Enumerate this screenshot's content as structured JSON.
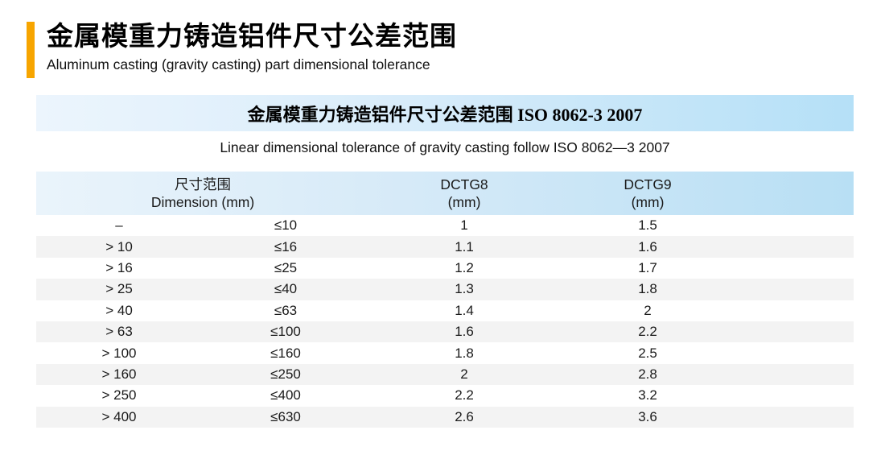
{
  "header": {
    "title_cn": "金属模重力铸造铝件尺寸公差范围",
    "subtitle_en": "Aluminum casting (gravity casting) part dimensional tolerance",
    "accent_color": "#F7A500"
  },
  "banner": {
    "title": "金属模重力铸造铝件尺寸公差范围 ISO 8062-3 2007",
    "subtitle_en": "Linear dimensional tolerance of gravity casting follow ISO 8062—3 2007",
    "gradient_left": "#ECF5FD",
    "gradient_right": "#B5E0F7"
  },
  "table": {
    "header": {
      "dimension_cn": "尺寸范围",
      "dimension_en": "Dimension (mm)",
      "dctg8": "DCTG8",
      "dctg8_unit": "(mm)",
      "dctg9": "DCTG9",
      "dctg9_unit": "(mm)"
    },
    "stripe_color": "#F3F3F3",
    "header_gradient_left": "#EAF4FB",
    "header_gradient_right": "#B8DFF4",
    "rows": [
      {
        "min": "–",
        "max": "≤10",
        "dctg8": "1",
        "dctg9": "1.5"
      },
      {
        "min": "> 10",
        "max": "≤16",
        "dctg8": "1.1",
        "dctg9": "1.6"
      },
      {
        "min": "> 16",
        "max": "≤25",
        "dctg8": "1.2",
        "dctg9": "1.7"
      },
      {
        "min": "> 25",
        "max": "≤40",
        "dctg8": "1.3",
        "dctg9": "1.8"
      },
      {
        "min": "> 40",
        "max": "≤63",
        "dctg8": "1.4",
        "dctg9": "2"
      },
      {
        "min": "> 63",
        "max": "≤100",
        "dctg8": "1.6",
        "dctg9": "2.2"
      },
      {
        "min": "> 100",
        "max": "≤160",
        "dctg8": "1.8",
        "dctg9": "2.5"
      },
      {
        "min": "> 160",
        "max": "≤250",
        "dctg8": "2",
        "dctg9": "2.8"
      },
      {
        "min": "> 250",
        "max": "≤400",
        "dctg8": "2.2",
        "dctg9": "3.2"
      },
      {
        "min": "> 400",
        "max": "≤630",
        "dctg8": "2.6",
        "dctg9": "3.6"
      }
    ]
  }
}
